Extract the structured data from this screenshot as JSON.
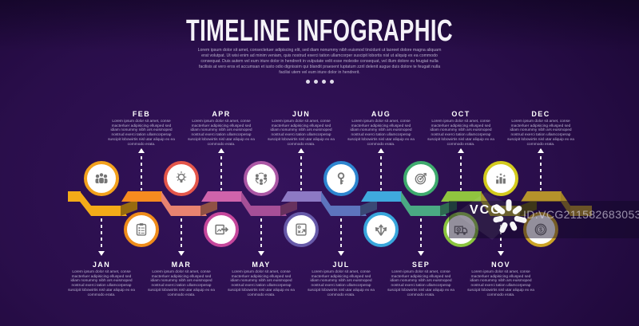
{
  "header": {
    "title": "TIMELINE INFOGRAPHIC",
    "intro": "Lorem ipsum dolor sit amet, consectetuer adipiscing elit, sed diam nonummy nibh euismod tincidunt ut laoreet dolore magna aliquam erat volutpat. Ut wisi enim ad minim veniam, quis nostrud exerci tation ullamcorper suscipit lobortis nisl ut aliquip ex ea commodo consequat. Duis autem vel eum iriure dolor in hendrerit in vulputate velit esse molestie consequat, vel illum dolore eu feugiat nulla facilisis at vero eros et accumsan et iusto odio dignissim qui blandit praesent luptatum zzril delenit augue duis dolore te feugait nulla facilisi utem vel eum iriure dolor in hendrerit.",
    "pagination_dots": 4
  },
  "month_text": "Lorem ipsum dolor sit amet, conse macterluer adipisicing ellusped sed idiam nonummy nibh ars euismoped nostrud exerci tation ullamcorperap suscipit lobowirtis nisl utar aliquip ex ea commodo erata.",
  "months": [
    {
      "name": "JAN",
      "icon": "team",
      "band": "#f3ab18",
      "ring": "#f2a11c"
    },
    {
      "name": "FEB",
      "icon": "checklist",
      "band": "#f68b1f",
      "ring": "#ef8c1a"
    },
    {
      "name": "MAR",
      "icon": "idea",
      "band": "#e88370",
      "ring": "#e4564a"
    },
    {
      "name": "APR",
      "icon": "export-image",
      "band": "#cf63ab",
      "ring": "#c6479c"
    },
    {
      "name": "MAY",
      "icon": "network",
      "band": "#a64f97",
      "ring": "#ab57a5"
    },
    {
      "name": "JUN",
      "icon": "strategy",
      "band": "#8d79c4",
      "ring": "#675aa9"
    },
    {
      "name": "JUL",
      "icon": "key",
      "band": "#5d74bd",
      "ring": "#2e86d0"
    },
    {
      "name": "AUG",
      "icon": "growth-arrows",
      "band": "#3fa9de",
      "ring": "#39a6dc"
    },
    {
      "name": "SEP",
      "icon": "target",
      "band": "#4aa983",
      "ring": "#3fab6e"
    },
    {
      "name": "OCT",
      "icon": "delivery",
      "band": "#90c43f",
      "ring": "#8bc53f"
    },
    {
      "name": "NOV",
      "icon": "ranking",
      "band": "#a3961d",
      "ring": "#d3ca1e"
    },
    {
      "name": "DEC",
      "icon": "finance",
      "band": "#b5922b",
      "ring": "#cba327"
    }
  ],
  "watermark": {
    "brand": "VCG",
    "id_label": "ID:VCG211582683053"
  },
  "colors": {
    "background_center": "#34135c",
    "background_edge": "#140525",
    "text_muted": "#b9b2cf",
    "icon_gray": "#757575"
  }
}
